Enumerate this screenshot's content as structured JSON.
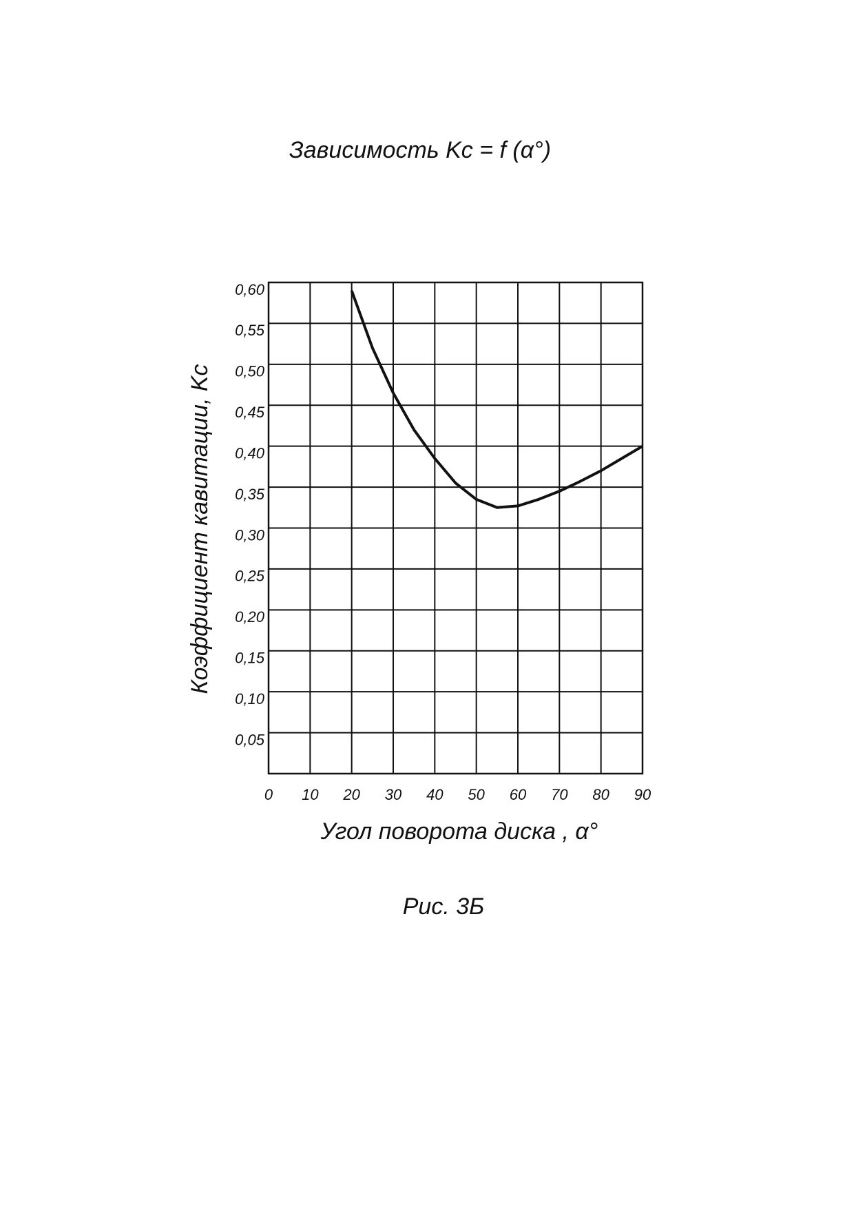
{
  "chart_data": {
    "type": "line",
    "title": "Зависимость Kc = f (α°)",
    "x_label": "Угол поворота диска , α°",
    "y_label": "Коэффициент кавитации, Kc",
    "caption": "Рис. 3Б",
    "x": [
      20,
      25,
      30,
      35,
      40,
      45,
      50,
      55,
      60,
      65,
      70,
      75,
      80,
      85,
      90
    ],
    "series": [
      {
        "name": "Kc",
        "color": "#111111",
        "values": [
          0.59,
          0.52,
          0.465,
          0.42,
          0.385,
          0.355,
          0.335,
          0.325,
          0.327,
          0.335,
          0.345,
          0.357,
          0.37,
          0.385,
          0.4
        ]
      }
    ],
    "xlim": [
      0,
      90
    ],
    "xticks": [
      0,
      10,
      20,
      30,
      40,
      50,
      60,
      70,
      80,
      90
    ],
    "ylim": [
      0,
      0.6
    ],
    "yticks": [
      {
        "value": 0.05,
        "label": "0,05"
      },
      {
        "value": 0.1,
        "label": "0,10"
      },
      {
        "value": 0.15,
        "label": "0,15"
      },
      {
        "value": 0.2,
        "label": "0,20"
      },
      {
        "value": 0.25,
        "label": "0,25"
      },
      {
        "value": 0.3,
        "label": "0,30"
      },
      {
        "value": 0.35,
        "label": "0,35"
      },
      {
        "value": 0.4,
        "label": "0,40"
      },
      {
        "value": 0.45,
        "label": "0,45"
      },
      {
        "value": 0.5,
        "label": "0,50"
      },
      {
        "value": 0.55,
        "label": "0,55"
      },
      {
        "value": 0.6,
        "label": "0,60"
      }
    ],
    "grid": true
  }
}
